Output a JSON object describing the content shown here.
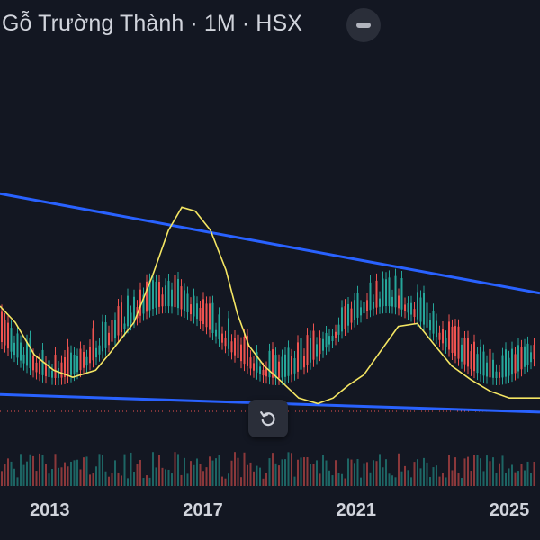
{
  "header": {
    "title": "Gỗ Trường Thành · 1M · HSX",
    "collapse_icon": "minus-icon"
  },
  "controls": {
    "reset_icon": "rotate-ccw-icon"
  },
  "colors": {
    "background": "#131722",
    "up": "#26a69a",
    "down": "#ef5350",
    "moving_average": "#f5e663",
    "trendline": "#2962ff",
    "price_line": "#ef5350"
  },
  "chart_data": {
    "type": "candlestick",
    "interval": "1M",
    "x_tick_labels": [
      "2013",
      "2017",
      "2021",
      "2025"
    ],
    "x_range": [
      2011.7,
      2025.8
    ],
    "price_scale": "log",
    "grid": false,
    "legend": "none",
    "moving_average": [
      {
        "t": 2011.7,
        "v": 8.0
      },
      {
        "t": 2012.1,
        "v": 6.0
      },
      {
        "t": 2012.6,
        "v": 3.4
      },
      {
        "t": 2013.1,
        "v": 2.6
      },
      {
        "t": 2013.6,
        "v": 2.3
      },
      {
        "t": 2014.2,
        "v": 2.6
      },
      {
        "t": 2014.6,
        "v": 3.6
      },
      {
        "t": 2015.2,
        "v": 6.0
      },
      {
        "t": 2015.7,
        "v": 14.0
      },
      {
        "t": 2016.1,
        "v": 30.0
      },
      {
        "t": 2016.45,
        "v": 45.0
      },
      {
        "t": 2016.8,
        "v": 42.0
      },
      {
        "t": 2017.2,
        "v": 30.0
      },
      {
        "t": 2017.6,
        "v": 15.0
      },
      {
        "t": 2017.9,
        "v": 7.0
      },
      {
        "t": 2018.2,
        "v": 4.0
      },
      {
        "t": 2018.6,
        "v": 2.8
      },
      {
        "t": 2019.0,
        "v": 2.2
      },
      {
        "t": 2019.5,
        "v": 1.6
      },
      {
        "t": 2020.0,
        "v": 1.45
      },
      {
        "t": 2020.4,
        "v": 1.6
      },
      {
        "t": 2020.8,
        "v": 2.0
      },
      {
        "t": 2021.2,
        "v": 2.4
      },
      {
        "t": 2021.6,
        "v": 3.5
      },
      {
        "t": 2022.1,
        "v": 5.6
      },
      {
        "t": 2022.6,
        "v": 5.9
      },
      {
        "t": 2023.0,
        "v": 4.2
      },
      {
        "t": 2023.5,
        "v": 2.8
      },
      {
        "t": 2024.0,
        "v": 2.2
      },
      {
        "t": 2024.5,
        "v": 1.8
      },
      {
        "t": 2025.0,
        "v": 1.6
      },
      {
        "t": 2025.8,
        "v": 1.6
      }
    ],
    "trendlines": [
      {
        "from": {
          "t": 2011.7,
          "v": 57.0
        },
        "to": {
          "t": 2025.8,
          "v": 10.0
        }
      },
      {
        "from": {
          "t": 2011.7,
          "v": 1.7
        },
        "to": {
          "t": 2025.8,
          "v": 1.25
        }
      }
    ]
  }
}
